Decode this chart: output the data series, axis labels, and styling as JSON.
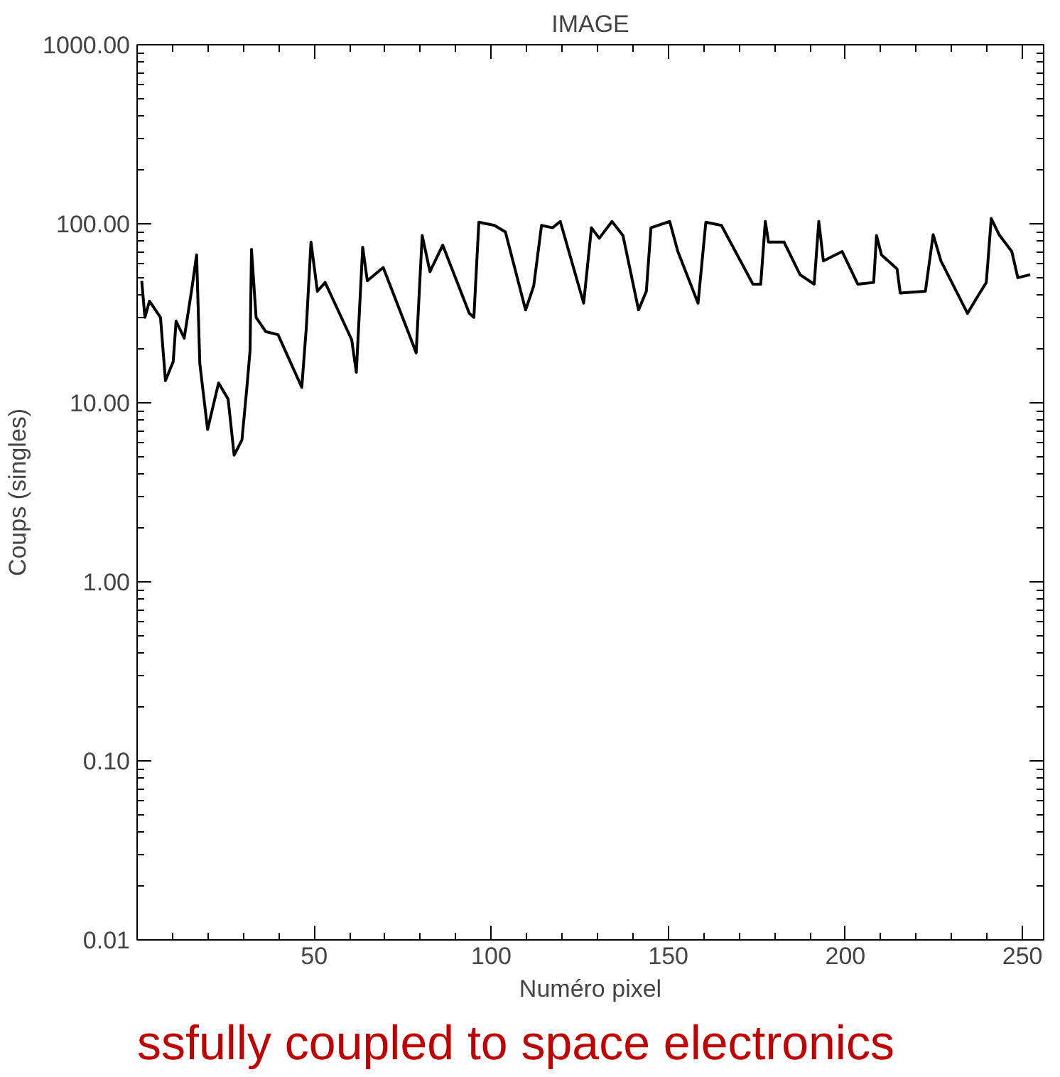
{
  "chart_data": {
    "type": "line",
    "title": "IMAGE",
    "xlabel": "Numéro pixel",
    "ylabel": "Coups (singles)",
    "annotations": [
      "ssfully coupled to space electronics"
    ],
    "log": "y",
    "grid": false,
    "marker": "none",
    "line_style": "solid",
    "xlim": [
      0,
      256
    ],
    "xticks": [
      50,
      100,
      150,
      200,
      250
    ],
    "ylim": [
      0.01,
      1000
    ],
    "yticks": [
      {
        "value": 0.01,
        "label": "0.01"
      },
      {
        "value": 0.1,
        "label": "0.10"
      },
      {
        "value": 1,
        "label": "1.00"
      },
      {
        "value": 10,
        "label": "10.00"
      },
      {
        "value": 100,
        "label": "100.00"
      },
      {
        "value": 1000,
        "label": "1000.00"
      }
    ],
    "series": [
      {
        "color": "#000000",
        "x": [
          1.3,
          2.2,
          3.5,
          6.6,
          8,
          10.2,
          11,
          13.3,
          15.5,
          16.8,
          17.7,
          19.9,
          23,
          25.7,
          27.4,
          29.6,
          31,
          31.9,
          32.3,
          33.6,
          36.3,
          39.8,
          46.5,
          47.8,
          49.1,
          50.9,
          53.1,
          60.6,
          61.9,
          63.7,
          65,
          69.5,
          77.4,
          78.8,
          80.5,
          82.7,
          86.3,
          93.8,
          95.1,
          96.5,
          100.9,
          104,
          109.7,
          112,
          114.2,
          117.3,
          119.5,
          126.1,
          128.3,
          130.5,
          134.1,
          137.2,
          141.6,
          143.8,
          145.1,
          150.4,
          152.7,
          158.4,
          160.6,
          165,
          173.9,
          176.1,
          177.4,
          178.3,
          182.7,
          187.2,
          191.2,
          192.5,
          193.8,
          199.1,
          203.5,
          208,
          208.8,
          210.2,
          214.6,
          215.5,
          222.6,
          224.8,
          227,
          234.5,
          237.6,
          239.8,
          241.2,
          243.4,
          247,
          248.7,
          252.2
        ],
        "values": [
          48,
          30,
          37,
          30,
          13.3,
          17,
          28.6,
          23,
          44,
          67,
          16.6,
          7.1,
          12.9,
          10.5,
          5.1,
          6.2,
          12.2,
          19.7,
          72,
          30,
          25,
          24,
          12.2,
          26.7,
          79,
          42,
          47,
          22.5,
          14.8,
          74,
          48,
          57,
          22.5,
          19,
          86,
          54,
          76,
          31.6,
          30,
          102,
          98,
          90,
          33,
          45,
          98,
          95,
          103,
          36,
          95,
          83,
          103,
          86,
          33,
          42,
          95,
          103,
          70,
          36,
          102,
          98,
          46,
          46,
          103,
          79,
          79,
          52,
          46,
          103,
          62,
          70,
          46,
          47,
          86,
          67,
          56,
          41,
          42,
          87,
          62,
          31.6,
          40,
          47,
          107,
          87,
          70,
          50,
          52
        ]
      }
    ]
  }
}
